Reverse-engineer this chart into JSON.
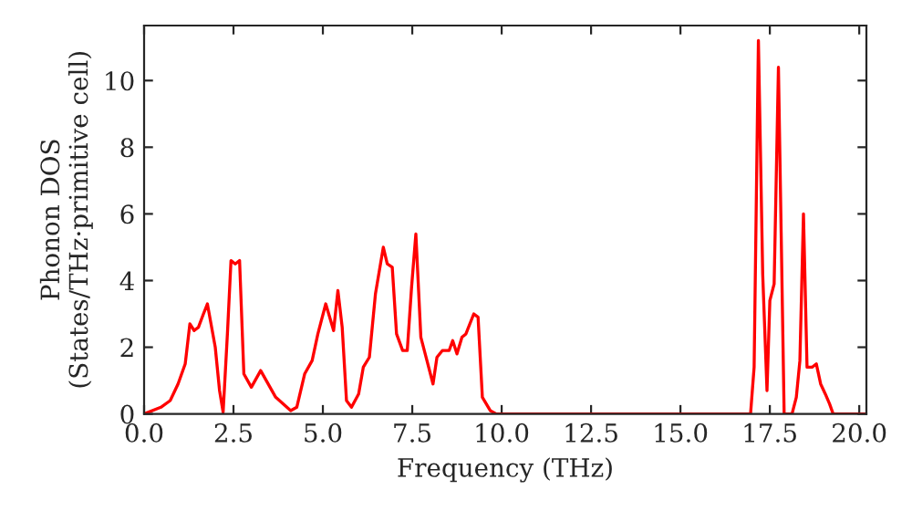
{
  "chart_data": {
    "type": "line",
    "xlabel": "Frequency (THz)",
    "ylabel": "Phonon DOS\n(States/THz·primitive cell)",
    "xlim": [
      0,
      20.2
    ],
    "ylim": [
      0,
      11.65
    ],
    "xticks": [
      {
        "value": 0,
        "label": "0.0"
      },
      {
        "value": 2.5,
        "label": "2.5"
      },
      {
        "value": 5,
        "label": "5.0"
      },
      {
        "value": 7.5,
        "label": "7.5"
      },
      {
        "value": 10,
        "label": "10.0"
      },
      {
        "value": 12.5,
        "label": "12.5"
      },
      {
        "value": 15,
        "label": "15.0"
      },
      {
        "value": 17.5,
        "label": "17.5"
      },
      {
        "value": 20,
        "label": "20.0"
      }
    ],
    "yticks": [
      0,
      2,
      4,
      6,
      8,
      10
    ],
    "grid": false,
    "legend": false,
    "marker": "none",
    "line_style": "solid",
    "series": [
      {
        "color": "#ff0000",
        "x": [
          0,
          0.47,
          0.73,
          0.95,
          1.15,
          1.28,
          1.4,
          1.52,
          1.66,
          1.77,
          1.99,
          2.11,
          2.21,
          2.33,
          2.43,
          2.55,
          2.67,
          2.79,
          3.0,
          3.26,
          3.68,
          4.1,
          4.27,
          4.49,
          4.7,
          4.86,
          5.08,
          5.3,
          5.42,
          5.54,
          5.66,
          5.8,
          6.0,
          6.13,
          6.3,
          6.47,
          6.69,
          6.8,
          6.94,
          7.06,
          7.23,
          7.36,
          7.48,
          7.6,
          7.74,
          7.91,
          8.08,
          8.19,
          8.34,
          8.53,
          8.63,
          8.75,
          8.89,
          9.0,
          9.22,
          9.34,
          9.46,
          9.68,
          9.85,
          16.96,
          17.06,
          17.18,
          17.3,
          17.42,
          17.5,
          17.62,
          17.74,
          17.9,
          18.12,
          18.24,
          18.34,
          18.44,
          18.54,
          18.68,
          18.8,
          18.92,
          19.05,
          19.17,
          19.27,
          20.2
        ],
        "values": [
          0,
          0.2,
          0.4,
          0.9,
          1.5,
          2.7,
          2.5,
          2.6,
          3.0,
          3.3,
          2.0,
          0.7,
          0.05,
          2.4,
          4.6,
          4.5,
          4.6,
          1.2,
          0.8,
          1.3,
          0.5,
          0.1,
          0.2,
          1.2,
          1.6,
          2.4,
          3.3,
          2.5,
          3.7,
          2.6,
          0.4,
          0.2,
          0.6,
          1.4,
          1.7,
          3.6,
          5.0,
          4.5,
          4.4,
          2.4,
          1.9,
          1.9,
          3.8,
          5.4,
          2.3,
          1.6,
          0.9,
          1.7,
          1.9,
          1.9,
          2.2,
          1.8,
          2.3,
          2.4,
          3.0,
          2.9,
          0.5,
          0.1,
          0,
          0,
          1.4,
          11.2,
          4.2,
          0.7,
          3.4,
          3.9,
          10.4,
          0,
          0,
          0.5,
          1.6,
          6.0,
          1.4,
          1.4,
          1.5,
          0.9,
          0.6,
          0.3,
          0,
          0
        ]
      }
    ]
  }
}
